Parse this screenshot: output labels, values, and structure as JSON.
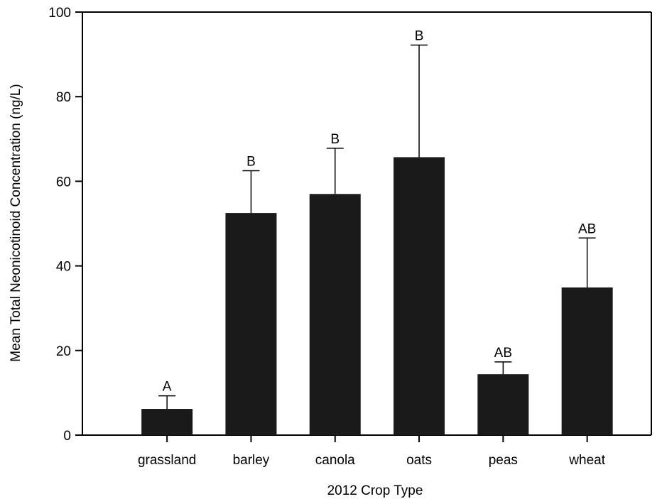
{
  "chart_data": {
    "type": "bar",
    "title": "",
    "xlabel": "2012 Crop Type",
    "ylabel": "Mean Total Neonicotinoid Concentration (ng/L)",
    "ylim": [
      0,
      100
    ],
    "yticks": [
      0,
      20,
      40,
      60,
      80,
      100
    ],
    "categories": [
      "grassland",
      "barley",
      "canola",
      "oats",
      "peas",
      "wheat"
    ],
    "values": [
      6.2,
      52.5,
      57,
      65.7,
      14.4,
      34.9
    ],
    "error_upper": [
      9.3,
      62.5,
      67.8,
      92.2,
      17.3,
      46.6
    ],
    "significance": [
      "A",
      "B",
      "B",
      "B",
      "AB",
      "AB"
    ],
    "bar_color": "#1a1a1a",
    "grid": false,
    "legend": "none"
  }
}
